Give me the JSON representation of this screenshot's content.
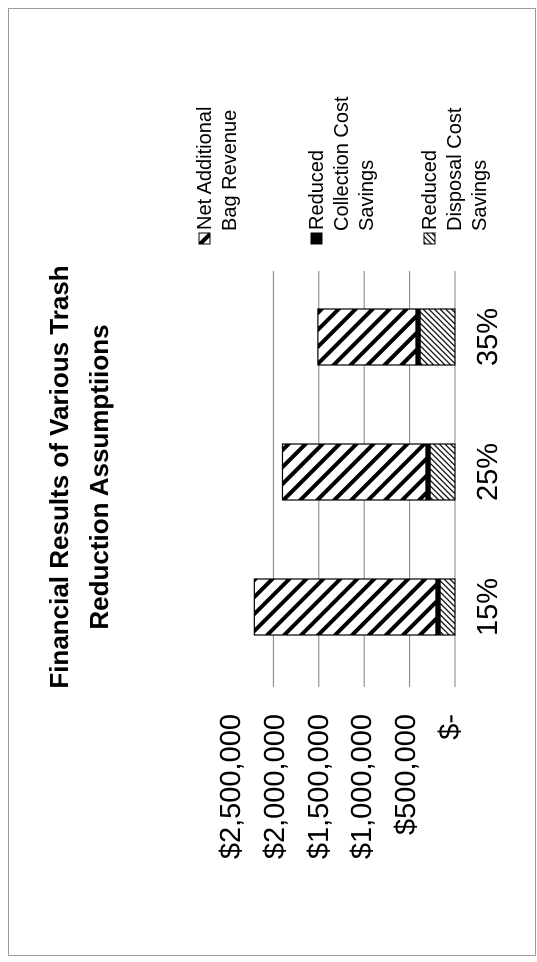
{
  "chart_data": {
    "type": "bar",
    "stacked": true,
    "orientation": "rotated-90-ccw",
    "title": "Financial Results of Various Trash Reduction Assumptiions",
    "title_lines": [
      "Financial Results of Various Trash",
      "Reduction Assumptiions"
    ],
    "categories": [
      "15%",
      "25%",
      "35%"
    ],
    "series": [
      {
        "name": "Reduced Disposal Cost Savings",
        "legend_lines": [
          "Reduced",
          "Disposal Cost",
          "Savings"
        ],
        "values": [
          165000,
          275000,
          385000
        ],
        "pattern": "dense-hatch"
      },
      {
        "name": "Reduced Collection Cost Savings",
        "legend_lines": [
          "Reduced",
          "Collection Cost",
          "Savings"
        ],
        "values": [
          45000,
          45000,
          45000
        ],
        "pattern": "solid-black"
      },
      {
        "name": "Net Additional Bag Revenue",
        "legend_lines": [
          "Net Additional",
          "Bag Revenue"
        ],
        "values": [
          2000000,
          1580000,
          1080000
        ],
        "pattern": "wide-hatch"
      }
    ],
    "y_ticks": [
      {
        "value": 0,
        "label": "$-"
      },
      {
        "value": 500000,
        "label": "$500,000"
      },
      {
        "value": 1000000,
        "label": "$1,000,000"
      },
      {
        "value": 1500000,
        "label": "$1,500,000"
      },
      {
        "value": 2000000,
        "label": "$2,000,000"
      },
      {
        "value": 2500000,
        "label": "$2,500,000"
      }
    ],
    "ylim": [
      0,
      2500000
    ],
    "grid": true,
    "legend_position": "right",
    "colors": {
      "ink": "#000000",
      "grid": "#808080",
      "border": "#9a9a9a"
    }
  }
}
